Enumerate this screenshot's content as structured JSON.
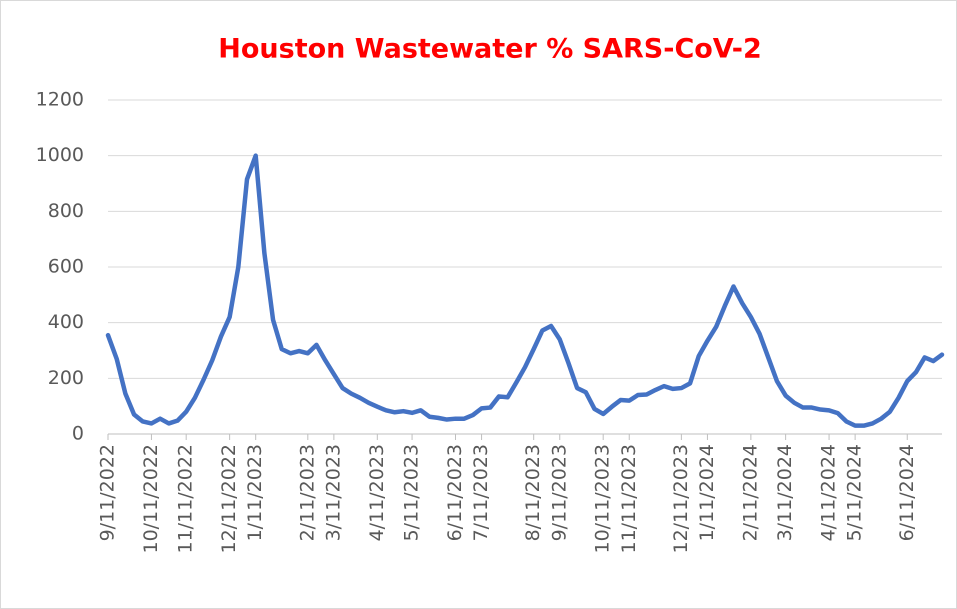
{
  "chart_data": {
    "type": "line",
    "title": "Houston Wastewater % SARS-CoV-2",
    "categories": [
      "9/11/2022",
      null,
      null,
      null,
      null,
      "10/11/2022",
      null,
      null,
      null,
      "11/11/2022",
      null,
      null,
      null,
      null,
      "12/11/2022",
      null,
      null,
      "1/11/2023",
      null,
      null,
      null,
      null,
      null,
      "2/11/2023",
      null,
      null,
      "3/11/2023",
      null,
      null,
      null,
      null,
      "4/11/2023",
      null,
      null,
      null,
      "5/11/2023",
      null,
      null,
      null,
      null,
      "6/11/2023",
      null,
      null,
      "7/11/2023",
      null,
      null,
      null,
      null,
      null,
      "8/11/2023",
      null,
      null,
      "9/11/2023",
      null,
      null,
      null,
      null,
      "10/11/2023",
      null,
      null,
      "11/11/2023",
      null,
      null,
      null,
      null,
      null,
      "12/11/2023",
      null,
      null,
      "1/11/2024",
      null,
      null,
      null,
      null,
      "2/11/2024",
      null,
      null,
      null,
      "3/11/2024",
      null,
      null,
      null,
      null,
      "4/11/2024",
      null,
      null,
      "5/11/2024",
      null,
      null,
      null,
      null,
      null,
      "6/11/2024",
      null,
      null,
      null,
      null
    ],
    "values": [
      355,
      270,
      145,
      70,
      45,
      38,
      55,
      38,
      48,
      80,
      130,
      195,
      265,
      350,
      420,
      600,
      915,
      1000,
      650,
      410,
      305,
      290,
      298,
      290,
      320,
      265,
      215,
      165,
      145,
      130,
      112,
      98,
      85,
      78,
      82,
      76,
      85,
      62,
      58,
      52,
      55,
      55,
      68,
      92,
      95,
      135,
      132,
      185,
      240,
      305,
      372,
      388,
      340,
      255,
      165,
      150,
      90,
      72,
      98,
      122,
      120,
      140,
      142,
      158,
      172,
      162,
      165,
      182,
      280,
      335,
      385,
      460,
      530,
      470,
      420,
      360,
      275,
      190,
      138,
      112,
      95,
      95,
      88,
      85,
      75,
      45,
      30,
      30,
      38,
      55,
      80,
      130,
      190,
      222,
      275,
      262,
      285
    ],
    "color": "#4472c4",
    "ylim": [
      0,
      1200
    ],
    "yticks": [
      0,
      200,
      400,
      600,
      800,
      1000,
      1200
    ],
    "grid": true
  }
}
